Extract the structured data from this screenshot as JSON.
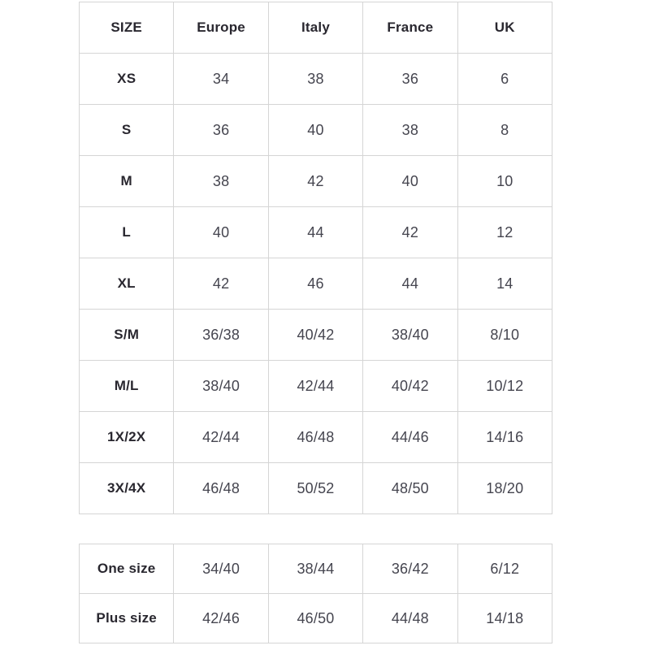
{
  "colors": {
    "background": "#ffffff",
    "border": "#d5d5d5",
    "header_text": "#29272f",
    "data_text": "#45454f"
  },
  "size_chart": {
    "columns": [
      "SIZE",
      "Europe",
      "Italy",
      "France",
      "UK"
    ],
    "rows": [
      {
        "label": "XS",
        "values": [
          "34",
          "38",
          "36",
          "6"
        ]
      },
      {
        "label": "S",
        "values": [
          "36",
          "40",
          "38",
          "8"
        ]
      },
      {
        "label": "M",
        "values": [
          "38",
          "42",
          "40",
          "10"
        ]
      },
      {
        "label": "L",
        "values": [
          "40",
          "44",
          "42",
          "12"
        ]
      },
      {
        "label": "XL",
        "values": [
          "42",
          "46",
          "44",
          "14"
        ]
      },
      {
        "label": "S/M",
        "values": [
          "36/38",
          "40/42",
          "38/40",
          "8/10"
        ]
      },
      {
        "label": "M/L",
        "values": [
          "38/40",
          "42/44",
          "40/42",
          "10/12"
        ]
      },
      {
        "label": "1X/2X",
        "values": [
          "42/44",
          "46/48",
          "44/46",
          "14/16"
        ]
      },
      {
        "label": "3X/4X",
        "values": [
          "46/48",
          "50/52",
          "48/50",
          "18/20"
        ]
      }
    ]
  },
  "special_sizes": {
    "rows": [
      {
        "label": "One size",
        "values": [
          "34/40",
          "38/44",
          "36/42",
          "6/12"
        ]
      },
      {
        "label": "Plus size",
        "values": [
          "42/46",
          "46/50",
          "44/48",
          "14/18"
        ]
      }
    ]
  }
}
